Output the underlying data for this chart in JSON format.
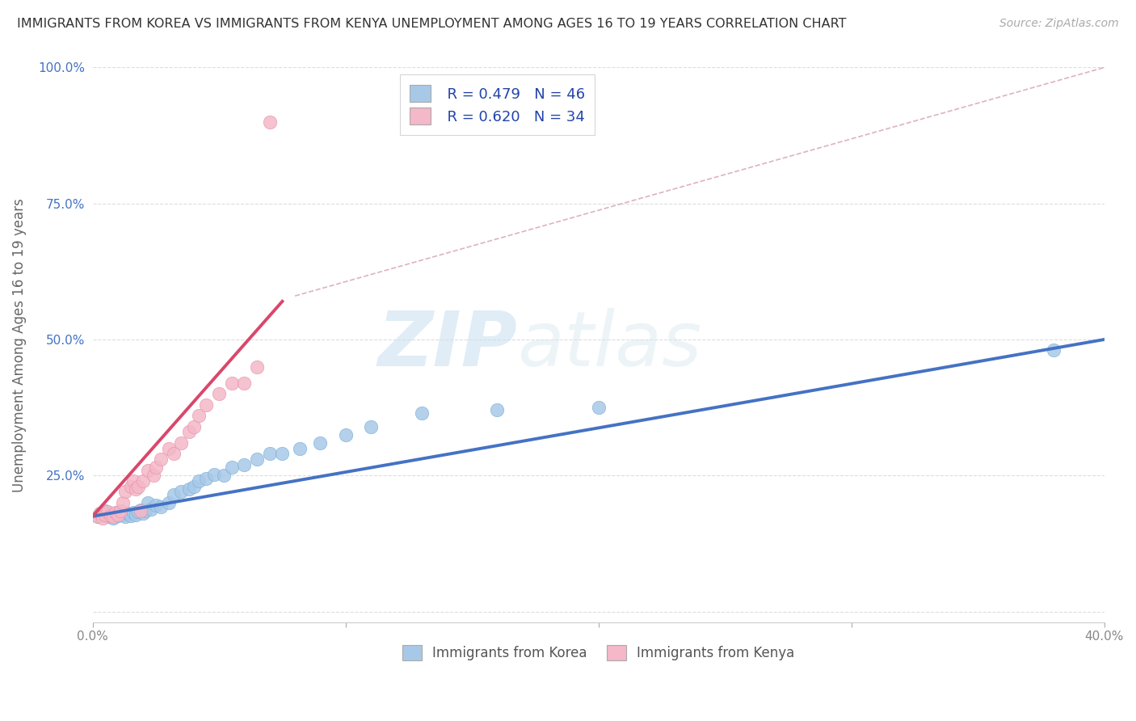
{
  "title": "IMMIGRANTS FROM KOREA VS IMMIGRANTS FROM KENYA UNEMPLOYMENT AMONG AGES 16 TO 19 YEARS CORRELATION CHART",
  "source": "Source: ZipAtlas.com",
  "xlabel_korea": "Immigrants from Korea",
  "xlabel_kenya": "Immigrants from Kenya",
  "ylabel": "Unemployment Among Ages 16 to 19 years",
  "xlim": [
    0.0,
    0.4
  ],
  "ylim": [
    -0.02,
    1.0
  ],
  "xticks": [
    0.0,
    0.1,
    0.2,
    0.3,
    0.4
  ],
  "xtick_labels": [
    "0.0%",
    "",
    "",
    "",
    "40.0%"
  ],
  "yticks": [
    0.0,
    0.25,
    0.5,
    0.75,
    1.0
  ],
  "ytick_labels": [
    "",
    "25.0%",
    "50.0%",
    "75.0%",
    "100.0%"
  ],
  "korea_color": "#a8c8e8",
  "kenya_color": "#f4b8c8",
  "korea_edge_color": "#7ab0d8",
  "kenya_edge_color": "#e890a8",
  "korea_line_color": "#4472c4",
  "kenya_line_color": "#d9476b",
  "ref_line_color": "#d4a0b0",
  "legend_R_korea": "R = 0.479",
  "legend_N_korea": "N = 46",
  "legend_R_kenya": "R = 0.620",
  "legend_N_kenya": "N = 34",
  "korea_scatter_x": [
    0.002,
    0.003,
    0.005,
    0.006,
    0.007,
    0.008,
    0.009,
    0.01,
    0.01,
    0.011,
    0.012,
    0.013,
    0.014,
    0.015,
    0.016,
    0.017,
    0.018,
    0.019,
    0.02,
    0.021,
    0.022,
    0.023,
    0.025,
    0.027,
    0.03,
    0.032,
    0.035,
    0.038,
    0.04,
    0.042,
    0.045,
    0.048,
    0.052,
    0.055,
    0.06,
    0.065,
    0.07,
    0.075,
    0.082,
    0.09,
    0.1,
    0.11,
    0.13,
    0.16,
    0.2,
    0.38
  ],
  "korea_scatter_y": [
    0.175,
    0.18,
    0.185,
    0.175,
    0.18,
    0.172,
    0.178,
    0.182,
    0.176,
    0.183,
    0.178,
    0.174,
    0.18,
    0.176,
    0.182,
    0.178,
    0.184,
    0.186,
    0.18,
    0.185,
    0.2,
    0.188,
    0.195,
    0.192,
    0.2,
    0.215,
    0.22,
    0.225,
    0.23,
    0.24,
    0.245,
    0.252,
    0.25,
    0.265,
    0.27,
    0.28,
    0.29,
    0.29,
    0.3,
    0.31,
    0.325,
    0.34,
    0.365,
    0.37,
    0.375,
    0.48
  ],
  "kenya_scatter_x": [
    0.002,
    0.003,
    0.004,
    0.005,
    0.006,
    0.007,
    0.008,
    0.009,
    0.01,
    0.011,
    0.012,
    0.013,
    0.015,
    0.016,
    0.017,
    0.018,
    0.019,
    0.02,
    0.022,
    0.024,
    0.025,
    0.027,
    0.03,
    0.032,
    0.035,
    0.038,
    0.04,
    0.042,
    0.045,
    0.05,
    0.055,
    0.06,
    0.065,
    0.07
  ],
  "kenya_scatter_y": [
    0.175,
    0.18,
    0.172,
    0.178,
    0.183,
    0.176,
    0.174,
    0.182,
    0.178,
    0.185,
    0.2,
    0.22,
    0.23,
    0.24,
    0.225,
    0.23,
    0.185,
    0.24,
    0.26,
    0.25,
    0.265,
    0.28,
    0.3,
    0.29,
    0.31,
    0.33,
    0.34,
    0.36,
    0.38,
    0.4,
    0.42,
    0.42,
    0.45,
    0.9
  ],
  "korea_trend_x": [
    0.0,
    0.4
  ],
  "korea_trend_y": [
    0.175,
    0.5
  ],
  "kenya_trend_x": [
    0.0,
    0.075
  ],
  "kenya_trend_y": [
    0.175,
    0.57
  ],
  "ref_line_x": [
    0.08,
    0.4
  ],
  "ref_line_y": [
    0.58,
    1.0
  ],
  "watermark_zip": "ZIP",
  "watermark_atlas": "atlas",
  "background_color": "#ffffff",
  "grid_color": "#dddddd",
  "ytick_color": "#4472c4",
  "xtick_color": "#888888"
}
